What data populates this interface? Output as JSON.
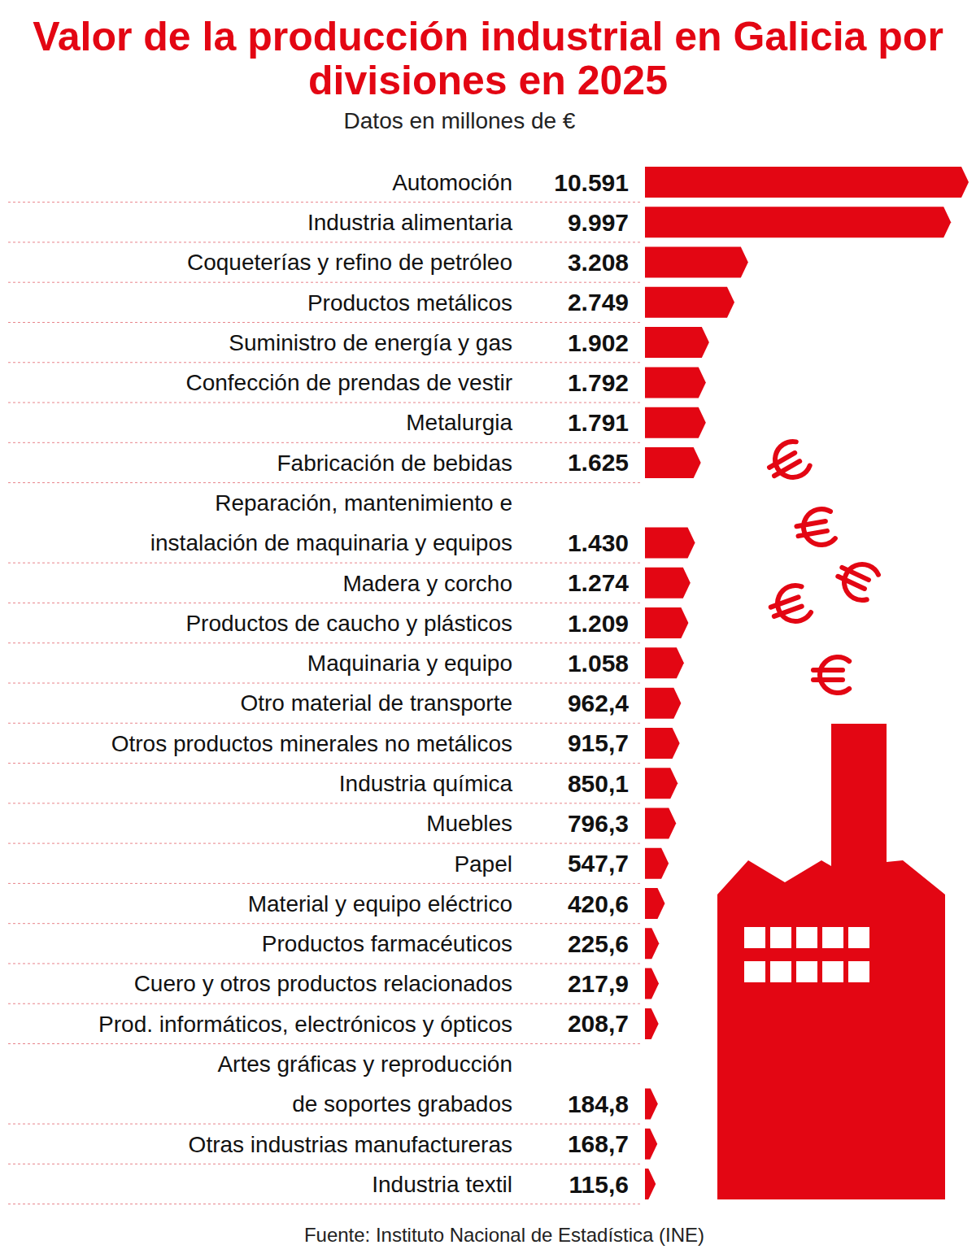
{
  "chart_data": {
    "type": "bar",
    "orientation": "horizontal",
    "title": "Valor de la producción industrial en Galicia por divisiones en 2025",
    "subtitle": "Datos en millones de €",
    "source": "Fuente: Instituto Nacional de Estadística (INE)",
    "categories": [
      "Automoción",
      "Industria alimentaria",
      "Coqueterías y refino de petróleo",
      "Productos metálicos",
      "Suministro de energía y gas",
      "Confección de prendas de vestir",
      "Metalurgia",
      "Fabricación de bebidas",
      "Reparación, mantenimiento e instalación de maquinaria y equipos",
      "Madera y corcho",
      "Productos de caucho y plásticos",
      "Maquinaria y equipo",
      "Otro material de transporte",
      "Otros productos minerales no metálicos",
      "Industria química",
      "Muebles",
      "Papel",
      "Material y equipo eléctrico",
      "Productos farmacéuticos",
      "Cuero y otros productos relacionados",
      "Prod. informáticos, electrónicos y ópticos",
      "Artes gráficas y reproducción de soportes grabados",
      "Otras industrias manufactureras",
      "Industria textil"
    ],
    "values": [
      10591,
      9997,
      3208,
      2749,
      1902,
      1792,
      1791,
      1625,
      1430,
      1274,
      1209,
      1058,
      962.4,
      915.7,
      850.1,
      796.3,
      547.7,
      420.6,
      225.6,
      217.9,
      208.7,
      184.8,
      168.7,
      115.6
    ],
    "value_labels": [
      "10.591",
      "9.997",
      "3.208",
      "2.749",
      "1.902",
      "1.792",
      "1.791",
      "1.625",
      "1.430",
      "1.274",
      "1.209",
      "1.058",
      "962,4",
      "915,7",
      "850,1",
      "796,3",
      "547,7",
      "420,6",
      "225,6",
      "217,9",
      "208,7",
      "184,8",
      "168,7",
      "115,6"
    ],
    "color": "#e30613",
    "data_labels": true,
    "tick_labels": "y",
    "grid": false
  }
}
